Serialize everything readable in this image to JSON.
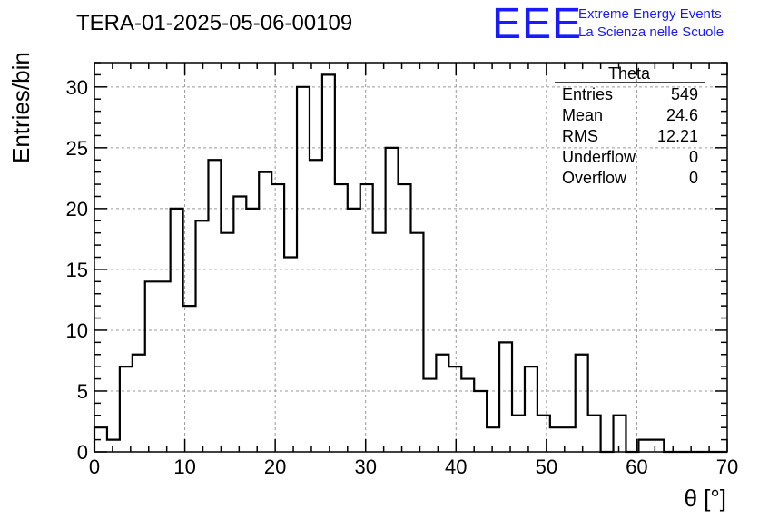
{
  "title": "TERA-01-2025-05-06-00109",
  "logo": {
    "mark": "EEE",
    "line1": "Extreme Energy Events",
    "line2": "La Scienza nelle Scuole"
  },
  "stats": {
    "name": "Theta",
    "rows": [
      {
        "label": "Entries",
        "value": "549"
      },
      {
        "label": "Mean",
        "value": "24.6"
      },
      {
        "label": "RMS",
        "value": "12.21"
      },
      {
        "label": "Underflow",
        "value": "0"
      },
      {
        "label": "Overflow",
        "value": "0"
      }
    ]
  },
  "chart_data": {
    "type": "bar",
    "histogram": true,
    "xlabel": "θ [°]",
    "ylabel": "Entries/bin",
    "xlim": [
      0,
      70
    ],
    "ylim": [
      0,
      32
    ],
    "grid": true,
    "bin_width": 1.4,
    "x_ticks": [
      0,
      10,
      20,
      30,
      40,
      50,
      60,
      70
    ],
    "y_ticks": [
      0,
      5,
      10,
      15,
      20,
      25,
      30
    ],
    "values": [
      2,
      1,
      7,
      8,
      14,
      14,
      20,
      12,
      19,
      24,
      18,
      21,
      20,
      23,
      22,
      16,
      30,
      24,
      31,
      22,
      20,
      22,
      18,
      25,
      22,
      18,
      6,
      8,
      7,
      6,
      5,
      2,
      9,
      3,
      7,
      3,
      2,
      2,
      8,
      3,
      0,
      3,
      0,
      1,
      1,
      0,
      0,
      0,
      0,
      0
    ]
  }
}
